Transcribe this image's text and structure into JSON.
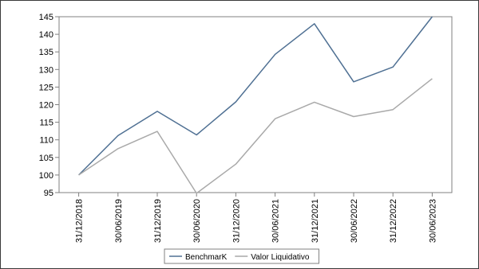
{
  "chart_data": {
    "type": "line",
    "title": "",
    "xlabel": "",
    "ylabel": "",
    "categories": [
      "31/12/2018",
      "30/06/2019",
      "31/12/2019",
      "30/06/2020",
      "31/12/2020",
      "30/06/2021",
      "31/12/2021",
      "30/06/2022",
      "31/12/2022",
      "30/06/2023"
    ],
    "ylim": [
      95,
      145
    ],
    "yticks": [
      95,
      100,
      105,
      110,
      115,
      120,
      125,
      130,
      135,
      140,
      145
    ],
    "grid": false,
    "legend": "bottom",
    "series": [
      {
        "name": "BenchmarK",
        "color": "#4f7093",
        "values": [
          100,
          111.2,
          118.1,
          111.4,
          120.8,
          134.3,
          143,
          126.5,
          130.7,
          145
        ]
      },
      {
        "name": "Valor Liquidativo",
        "color": "#a9a9a9",
        "values": [
          100,
          107.5,
          112.4,
          94.8,
          103.1,
          116,
          120.7,
          116.6,
          118.6,
          127.4
        ]
      }
    ]
  }
}
